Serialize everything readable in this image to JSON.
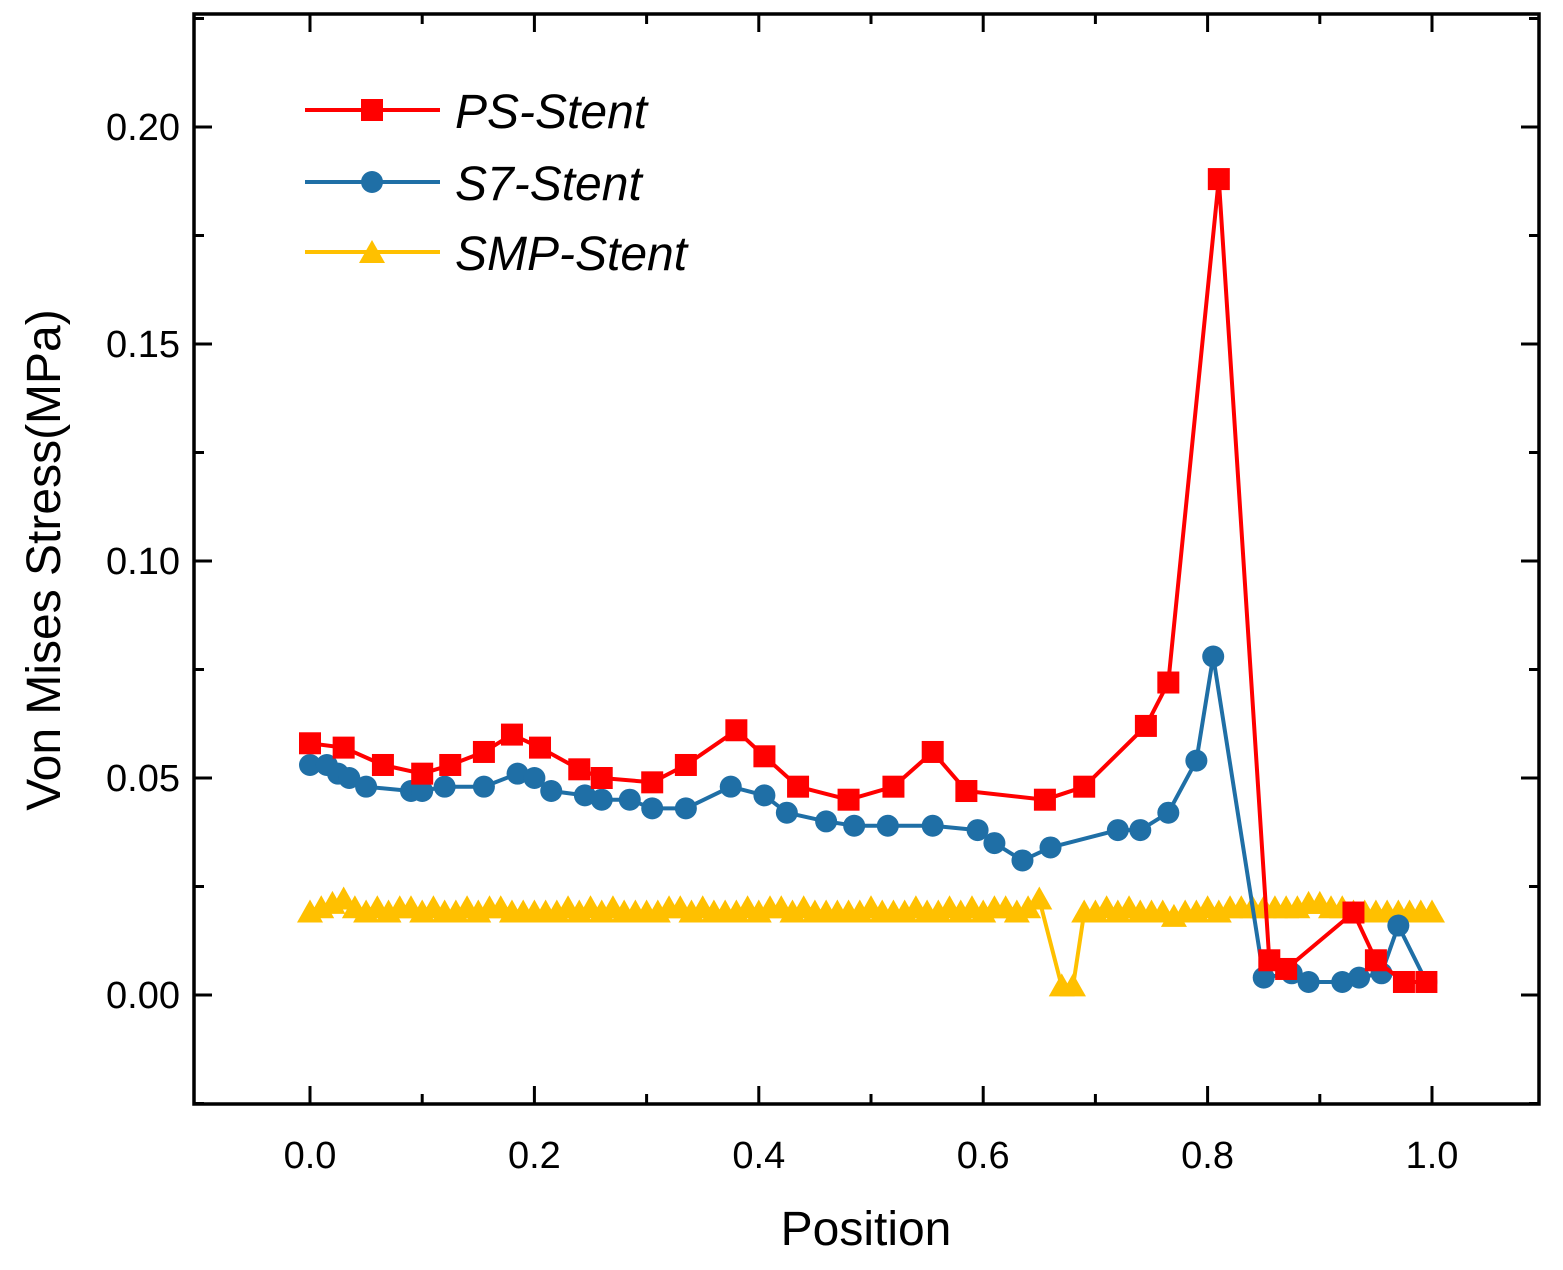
{
  "chart_data": {
    "type": "line",
    "xlabel": "Position",
    "ylabel": "Von Mises Stress(MPa)",
    "xlim": [
      -0.1,
      1.1
    ],
    "ylim": [
      -0.024,
      0.225
    ],
    "xticks": [
      "0.0",
      "0.2",
      "0.4",
      "0.6",
      "0.8",
      "1.0"
    ],
    "yticks": [
      "0.00",
      "0.05",
      "0.10",
      "0.15",
      "0.20"
    ],
    "legend_position": "top-left",
    "grid": false,
    "series": [
      {
        "name": "PS-Stent",
        "color": "#ff0000",
        "marker": "square",
        "x": [
          0.0,
          0.03,
          0.065,
          0.1,
          0.125,
          0.155,
          0.18,
          0.205,
          0.24,
          0.26,
          0.305,
          0.335,
          0.38,
          0.405,
          0.435,
          0.48,
          0.52,
          0.555,
          0.585,
          0.655,
          0.69,
          0.745,
          0.765,
          0.81,
          0.855,
          0.87,
          0.93,
          0.95,
          0.975,
          0.995
        ],
        "y": [
          0.058,
          0.057,
          0.053,
          0.051,
          0.053,
          0.056,
          0.06,
          0.057,
          0.052,
          0.05,
          0.049,
          0.053,
          0.061,
          0.055,
          0.048,
          0.045,
          0.048,
          0.056,
          0.047,
          0.045,
          0.048,
          0.062,
          0.072,
          0.188,
          0.008,
          0.006,
          0.019,
          0.008,
          0.003,
          0.003
        ]
      },
      {
        "name": "S7-Stent",
        "color": "#1f6fa6",
        "marker": "circle",
        "x": [
          0.0,
          0.015,
          0.025,
          0.035,
          0.05,
          0.09,
          0.1,
          0.12,
          0.155,
          0.185,
          0.2,
          0.215,
          0.245,
          0.26,
          0.285,
          0.305,
          0.335,
          0.375,
          0.405,
          0.425,
          0.46,
          0.485,
          0.515,
          0.555,
          0.595,
          0.61,
          0.635,
          0.66,
          0.72,
          0.74,
          0.765,
          0.79,
          0.805,
          0.85,
          0.875,
          0.89,
          0.92,
          0.935,
          0.955,
          0.97,
          0.995
        ],
        "y": [
          0.053,
          0.053,
          0.051,
          0.05,
          0.048,
          0.047,
          0.047,
          0.048,
          0.048,
          0.051,
          0.05,
          0.047,
          0.046,
          0.045,
          0.045,
          0.043,
          0.043,
          0.048,
          0.046,
          0.042,
          0.04,
          0.039,
          0.039,
          0.039,
          0.038,
          0.035,
          0.031,
          0.034,
          0.038,
          0.038,
          0.042,
          0.054,
          0.078,
          0.004,
          0.005,
          0.003,
          0.003,
          0.004,
          0.005,
          0.016,
          0.003
        ]
      },
      {
        "name": "SMP-Stent",
        "color": "#ffc000",
        "marker": "triangle",
        "x": [
          0.0,
          0.01,
          0.02,
          0.03,
          0.04,
          0.05,
          0.06,
          0.07,
          0.08,
          0.09,
          0.1,
          0.11,
          0.12,
          0.13,
          0.14,
          0.15,
          0.16,
          0.17,
          0.18,
          0.19,
          0.2,
          0.21,
          0.22,
          0.23,
          0.24,
          0.25,
          0.26,
          0.27,
          0.28,
          0.29,
          0.3,
          0.31,
          0.32,
          0.33,
          0.34,
          0.35,
          0.36,
          0.37,
          0.38,
          0.39,
          0.4,
          0.41,
          0.42,
          0.43,
          0.44,
          0.45,
          0.46,
          0.47,
          0.48,
          0.49,
          0.5,
          0.51,
          0.52,
          0.53,
          0.54,
          0.55,
          0.56,
          0.57,
          0.58,
          0.59,
          0.6,
          0.61,
          0.62,
          0.63,
          0.64,
          0.65,
          0.67,
          0.68,
          0.69,
          0.7,
          0.71,
          0.72,
          0.73,
          0.74,
          0.75,
          0.76,
          0.77,
          0.78,
          0.79,
          0.8,
          0.81,
          0.82,
          0.83,
          0.84,
          0.85,
          0.86,
          0.87,
          0.88,
          0.89,
          0.9,
          0.91,
          0.92,
          0.93,
          0.94,
          0.95,
          0.96,
          0.97,
          0.98,
          0.99,
          1.0
        ],
        "y": [
          0.019,
          0.02,
          0.021,
          0.022,
          0.02,
          0.019,
          0.02,
          0.019,
          0.02,
          0.02,
          0.019,
          0.02,
          0.019,
          0.019,
          0.02,
          0.019,
          0.02,
          0.02,
          0.019,
          0.019,
          0.019,
          0.019,
          0.019,
          0.02,
          0.019,
          0.02,
          0.019,
          0.02,
          0.019,
          0.019,
          0.019,
          0.019,
          0.02,
          0.02,
          0.019,
          0.02,
          0.019,
          0.019,
          0.019,
          0.02,
          0.019,
          0.02,
          0.02,
          0.019,
          0.02,
          0.019,
          0.019,
          0.019,
          0.019,
          0.019,
          0.02,
          0.019,
          0.019,
          0.019,
          0.02,
          0.019,
          0.019,
          0.02,
          0.019,
          0.02,
          0.019,
          0.02,
          0.02,
          0.019,
          0.02,
          0.022,
          0.002,
          0.002,
          0.019,
          0.019,
          0.02,
          0.019,
          0.02,
          0.019,
          0.019,
          0.019,
          0.018,
          0.019,
          0.019,
          0.02,
          0.019,
          0.02,
          0.02,
          0.02,
          0.02,
          0.02,
          0.02,
          0.02,
          0.021,
          0.021,
          0.02,
          0.02,
          0.019,
          0.019,
          0.019,
          0.019,
          0.019,
          0.019,
          0.019,
          0.019
        ]
      }
    ]
  }
}
